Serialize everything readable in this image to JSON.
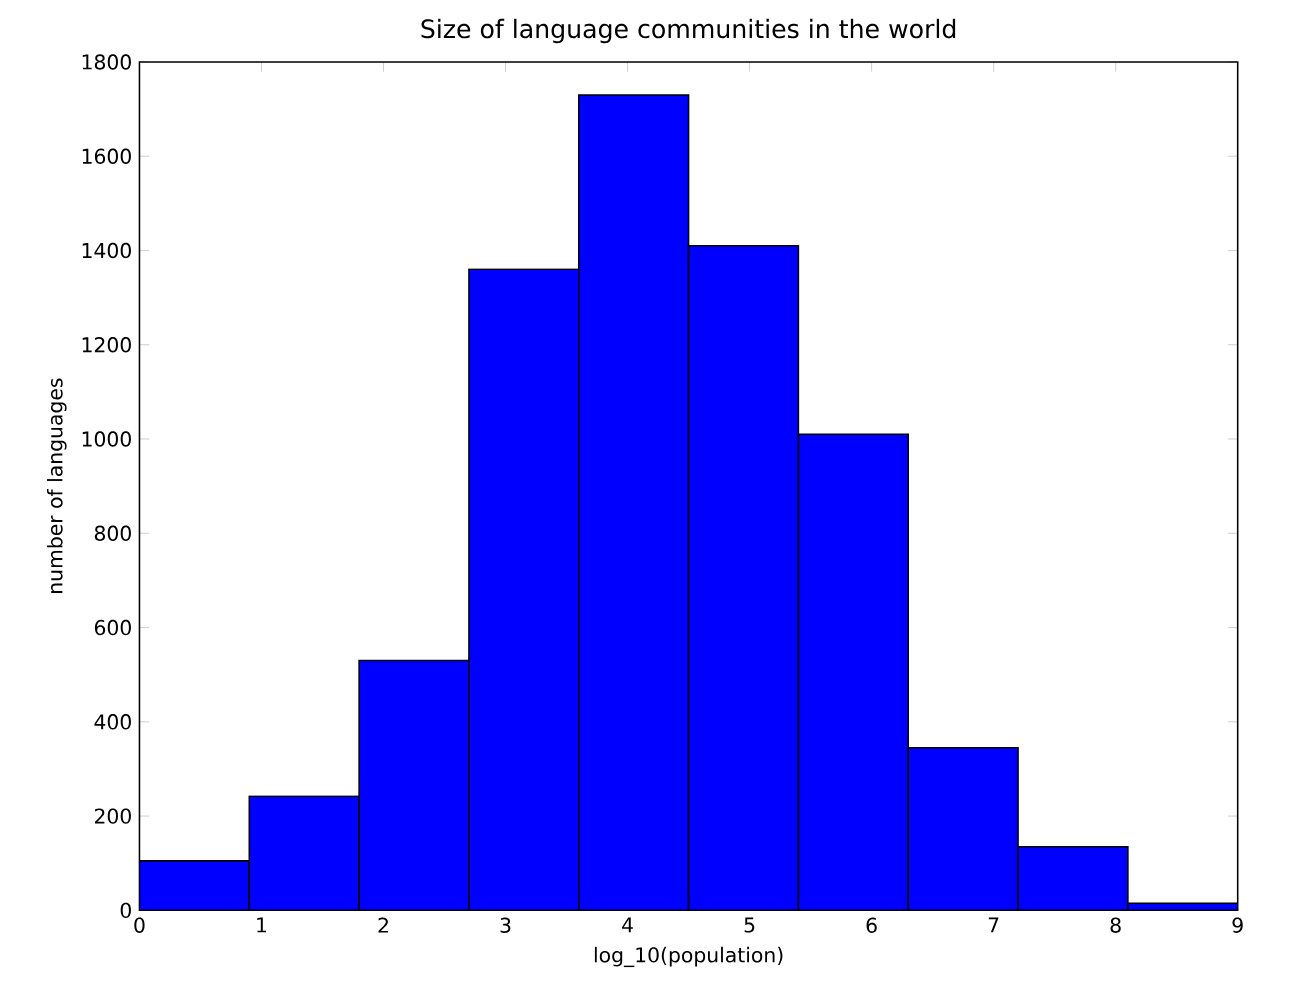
{
  "chart_data": {
    "type": "histogram",
    "title": "Size of language communities in the world",
    "xlabel": "log_10(population)",
    "ylabel": "number of languages",
    "bins": [
      0,
      0.9,
      1.8,
      2.7,
      3.6,
      4.5,
      5.4,
      6.3,
      7.2,
      8.1,
      9.0
    ],
    "values": [
      105,
      242,
      530,
      1360,
      1730,
      1410,
      1010,
      345,
      135,
      15
    ],
    "color": "#0000ff",
    "xlim": [
      0,
      9
    ],
    "xticks": [
      0,
      1,
      2,
      3,
      4,
      5,
      6,
      7,
      8,
      9
    ],
    "ylim": [
      0,
      1800
    ],
    "yticks": [
      0,
      200,
      400,
      600,
      800,
      1000,
      1200,
      1400,
      1600,
      1800
    ]
  }
}
